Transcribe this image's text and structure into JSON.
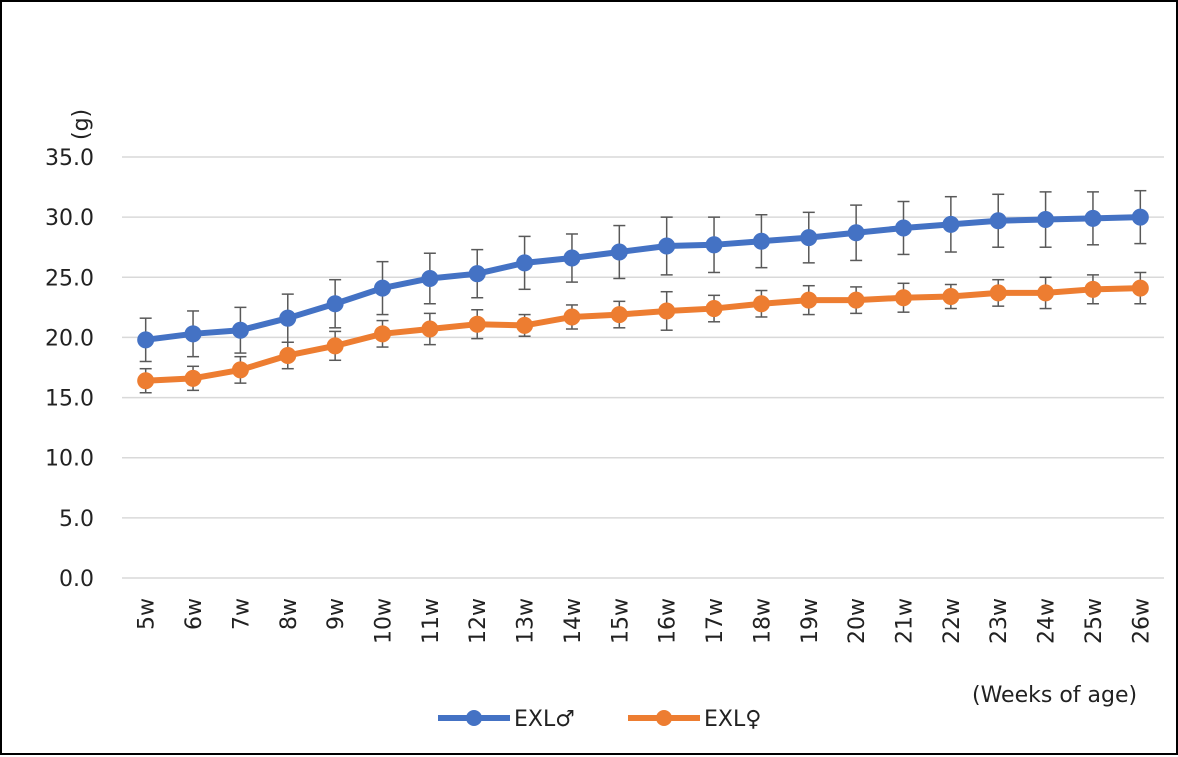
{
  "chart_data": {
    "type": "line",
    "ylabel": "(g)",
    "xlabel": "(Weeks of age)",
    "ylim": [
      0,
      35
    ],
    "yticks": [
      "0.0",
      "5.0",
      "10.0",
      "15.0",
      "20.0",
      "25.0",
      "30.0",
      "35.0"
    ],
    "categories": [
      "5w",
      "6w",
      "7w",
      "8w",
      "9w",
      "10w",
      "11w",
      "12w",
      "13w",
      "14w",
      "15w",
      "16w",
      "17w",
      "18w",
      "19w",
      "20w",
      "21w",
      "22w",
      "23w",
      "24w",
      "25w",
      "26w"
    ],
    "grid": "horizontal",
    "legend_position": "bottom",
    "series": [
      {
        "name": "EXL♂",
        "color": "#4472C4",
        "values": [
          19.8,
          20.3,
          20.6,
          21.6,
          22.8,
          24.1,
          24.9,
          25.3,
          26.2,
          26.6,
          27.1,
          27.6,
          27.7,
          28.0,
          28.3,
          28.7,
          29.1,
          29.4,
          29.7,
          29.8,
          29.9,
          30.0
        ],
        "error": [
          1.8,
          1.9,
          1.9,
          2.0,
          2.0,
          2.2,
          2.1,
          2.0,
          2.2,
          2.0,
          2.2,
          2.4,
          2.3,
          2.2,
          2.1,
          2.3,
          2.2,
          2.3,
          2.2,
          2.3,
          2.2,
          2.2
        ]
      },
      {
        "name": "EXL♀",
        "color": "#ED7D31",
        "values": [
          16.4,
          16.6,
          17.3,
          18.5,
          19.3,
          20.3,
          20.7,
          21.1,
          21.0,
          21.7,
          21.9,
          22.2,
          22.4,
          22.8,
          23.1,
          23.1,
          23.3,
          23.4,
          23.7,
          23.7,
          24.0,
          24.1
        ],
        "error": [
          1.0,
          1.0,
          1.1,
          1.1,
          1.2,
          1.1,
          1.3,
          1.2,
          0.9,
          1.0,
          1.1,
          1.6,
          1.1,
          1.1,
          1.2,
          1.1,
          1.2,
          1.0,
          1.1,
          1.3,
          1.2,
          1.3
        ]
      }
    ]
  }
}
